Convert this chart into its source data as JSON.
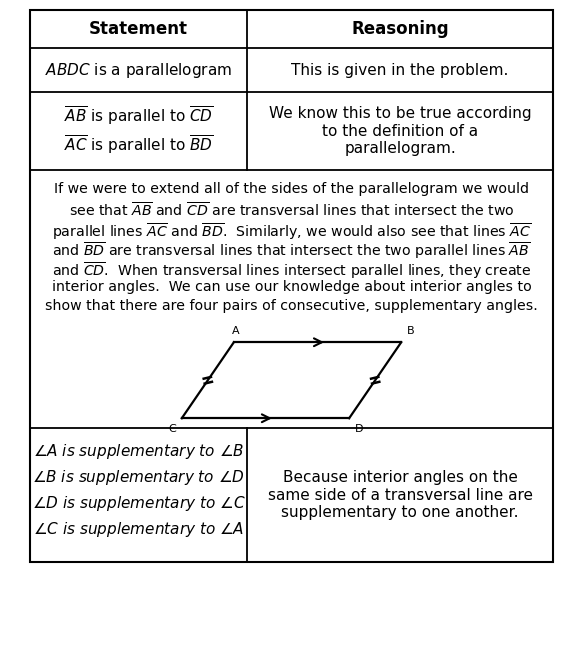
{
  "header_statement": "Statement",
  "header_reasoning": "Reasoning",
  "row1_left": "ABDC",
  "row1_left_suffix": " is a parallelogram",
  "row1_right": "This is given in the problem.",
  "row2_line1_l1": "AB",
  "row2_line1_l2": "CD",
  "row2_line2_l1": "AC",
  "row2_line2_l2": "BD",
  "row2_right": "We know this to be true according\nto the definition of a\nparallelogram.",
  "para_lines": [
    "If we were to extend all of the sides of the parallelogram we would",
    "see that $\\overline{AB}$ and $\\overline{CD}$ are transversal lines that intersect the two",
    "parallel lines $\\overline{AC}$ and $\\overline{BD}$.  Similarly, we would also see that lines $\\overline{AC}$",
    "and $\\overline{BD}$ are transversal lines that intersect the two parallel lines $\\overline{AB}$",
    "and $\\overline{CD}$.  When transversal lines intersect parallel lines, they create",
    "interior angles.  We can use our knowledge about interior angles to",
    "show that there are four pairs of consecutive, supplementary angles."
  ],
  "row4_lines": [
    "$\\angle A$ is supplementary to $\\angle B$",
    "$\\angle B$ is supplementary to $\\angle D$",
    "$\\angle D$ is supplementary to $\\angle C$",
    "$\\angle C$ is supplementary to $\\angle A$"
  ],
  "row4_right": "Because interior angles on the\nsame side of a transversal line are\nsupplementary to one another.",
  "fig_width": 5.83,
  "fig_height": 6.72,
  "dpi": 100
}
